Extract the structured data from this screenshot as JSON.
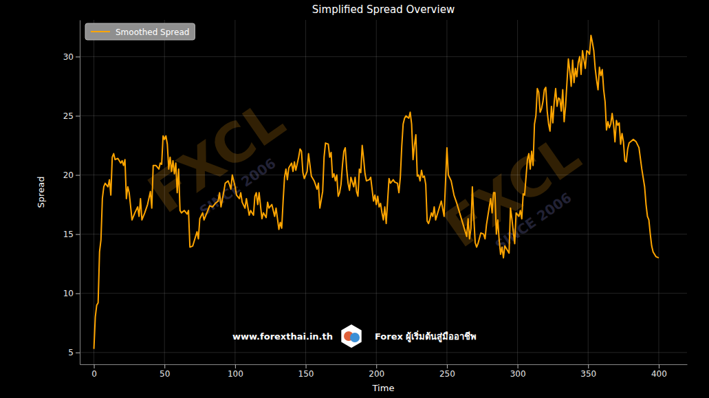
{
  "chart_data": {
    "type": "line",
    "title": "Simplified Spread Overview",
    "x_label": "Time",
    "y_label": "Spread",
    "x": [
      0,
      1,
      2,
      3,
      4,
      5,
      6,
      7,
      8,
      10,
      11,
      12,
      13,
      14,
      15,
      17,
      19,
      20,
      21,
      22,
      23,
      24,
      25,
      27,
      29,
      31,
      32,
      33,
      34,
      36,
      38,
      40,
      41,
      42,
      44,
      46,
      47,
      48,
      49,
      50,
      51,
      52,
      53,
      54,
      55,
      56,
      57,
      58,
      59,
      60,
      61,
      62,
      64,
      66,
      67,
      68,
      70,
      72,
      73,
      74,
      75,
      77,
      78,
      80,
      82,
      84,
      86,
      88,
      89,
      90,
      92,
      93,
      95,
      96,
      97,
      98,
      100,
      101,
      103,
      104,
      105,
      107,
      108,
      110,
      111,
      113,
      114,
      115,
      116,
      117,
      119,
      120,
      122,
      123,
      124,
      126,
      128,
      129,
      131,
      132,
      133,
      134,
      135,
      136,
      137,
      138,
      140,
      141,
      142,
      143,
      145,
      146,
      147,
      148,
      149,
      151,
      152,
      154,
      156,
      158,
      159,
      160,
      162,
      163,
      164,
      166,
      167,
      168,
      169,
      170,
      171,
      172,
      173,
      174,
      175,
      176,
      177,
      178,
      179,
      180,
      181,
      182,
      184,
      185,
      186,
      187,
      188,
      189,
      190,
      191,
      192,
      193,
      195,
      196,
      198,
      199,
      200,
      201,
      202,
      203,
      204,
      205,
      206,
      207,
      208,
      209,
      210,
      212,
      213,
      215,
      216,
      217,
      218,
      219,
      220,
      221,
      223,
      224,
      225,
      226,
      227,
      228,
      229,
      230,
      231,
      232,
      233,
      234,
      235,
      236,
      237,
      238,
      239,
      240,
      241,
      242,
      244,
      246,
      248,
      250,
      251,
      253,
      255,
      257,
      259,
      261,
      263,
      264,
      265,
      266,
      267,
      268,
      269,
      270,
      271,
      272,
      274,
      276,
      277,
      278,
      280,
      281,
      282,
      283,
      284,
      285,
      286,
      287,
      288,
      289,
      290,
      291,
      293,
      294,
      295,
      296,
      297,
      298,
      299,
      301,
      302,
      303,
      304,
      305,
      307,
      308,
      309,
      310,
      311,
      312,
      313,
      314,
      315,
      316,
      317,
      318,
      319,
      320,
      321,
      322,
      323,
      324,
      325,
      326,
      327,
      328,
      329,
      330,
      331,
      332,
      333,
      334,
      336,
      337,
      338,
      339,
      340,
      341,
      342,
      343,
      344,
      345,
      346,
      348,
      349,
      350,
      351,
      352,
      353,
      354,
      355,
      356,
      357,
      358,
      359,
      360,
      361,
      362,
      363,
      364,
      365,
      366,
      367,
      368,
      369,
      370,
      371,
      372,
      373,
      374,
      375,
      376,
      377,
      378,
      379,
      380,
      382,
      384,
      386,
      388,
      390,
      391,
      392,
      393,
      394,
      395,
      396,
      398,
      400
    ],
    "series": [
      {
        "name": "Smoothed Spread",
        "color": "#ffa500",
        "values": [
          5.3,
          8,
          9,
          9.2,
          13.5,
          14.5,
          18,
          19,
          19.3,
          19,
          19.6,
          18.3,
          21.5,
          21.8,
          21.3,
          21.4,
          21,
          21.2,
          20.8,
          21.3,
          18,
          19,
          18.5,
          16.2,
          16.8,
          17.3,
          16.5,
          18,
          16.2,
          16.8,
          17.5,
          18.6,
          17.2,
          20.8,
          20.8,
          20.5,
          21,
          20.9,
          23.3,
          23,
          23.3,
          22.6,
          20.5,
          21.5,
          20.3,
          21.2,
          20.1,
          21,
          18.5,
          20.5,
          17,
          16.8,
          17,
          16.7,
          17,
          13.9,
          14,
          14.8,
          15.2,
          14.6,
          16.3,
          16.8,
          16.2,
          16.8,
          17.4,
          17.3,
          17.6,
          17.8,
          18.5,
          17.3,
          18.6,
          19.3,
          19.5,
          19.2,
          18.8,
          20,
          19,
          18.3,
          18,
          18.5,
          17.7,
          17.2,
          18,
          16.6,
          17,
          16.6,
          18.2,
          18.5,
          17.5,
          18.5,
          16.3,
          16.8,
          16.4,
          17.7,
          17.2,
          17.5,
          16.5,
          17.2,
          15.4,
          16,
          15.5,
          17.8,
          19.8,
          20.5,
          19.6,
          20.6,
          21,
          20.3,
          21.1,
          20.4,
          21.5,
          22.2,
          22,
          20.2,
          19.7,
          20.3,
          21.8,
          19.9,
          19.5,
          18.8,
          19.3,
          17.2,
          18.6,
          21.5,
          22.7,
          22.6,
          21.5,
          21.9,
          19.8,
          20.1,
          19.5,
          20,
          18.2,
          18.5,
          19.2,
          20.8,
          22,
          22.3,
          20.5,
          19.3,
          18.7,
          19.8,
          19,
          19.8,
          18.6,
          18.2,
          20.5,
          20.2,
          22.5,
          21.4,
          20.1,
          19.5,
          19.6,
          19.8,
          17.8,
          18.3,
          17.5,
          18.2,
          17.3,
          17.6,
          16.8,
          16.2,
          17.3,
          15.9,
          17.8,
          19.7,
          19.3,
          19.6,
          19.4,
          19.3,
          18.5,
          19.8,
          22.4,
          24.3,
          24.8,
          25,
          24.8,
          25.3,
          24.3,
          21.3,
          22.5,
          23.4,
          19.9,
          20,
          19.5,
          20.4,
          19.8,
          19.9,
          19.2,
          16.1,
          15.9,
          16.3,
          16.8,
          16.5,
          17.3,
          16.2,
          17,
          17.8,
          16.5,
          22.3,
          20,
          19.5,
          18.3,
          17.6,
          16.8,
          16,
          15.2,
          14.8,
          16.3,
          14.6,
          15.5,
          19,
          16.5,
          14.3,
          13.9,
          14.2,
          15.1,
          15,
          14.6,
          15.8,
          17.3,
          18,
          16.8,
          18.5,
          18.5,
          15,
          16.2,
          14.5,
          13.3,
          13.9,
          13,
          14,
          13.6,
          13.4,
          17.2,
          16.3,
          15.2,
          14.2,
          16.8,
          16.5,
          17,
          16.3,
          18.4,
          18.3,
          21.3,
          21.8,
          20.5,
          22,
          20.8,
          24.3,
          25,
          27.3,
          27,
          25.3,
          25.6,
          26.2,
          27.2,
          27.4,
          25.4,
          24.3,
          23.7,
          25.8,
          24.4,
          26.2,
          27.3,
          25.8,
          26.5,
          26.4,
          25.4,
          27.2,
          24.5,
          25.8,
          29.8,
          28.8,
          27.5,
          29.7,
          27.8,
          29,
          28.3,
          29.5,
          30,
          28.5,
          30.5,
          29,
          30.5,
          30.4,
          30.2,
          31.8,
          31.2,
          30.5,
          29,
          28,
          27.2,
          29.1,
          28.4,
          28.9,
          27.2,
          26.2,
          23.8,
          24.5,
          24,
          24.3,
          25.2,
          24.3,
          22.8,
          24.6,
          24.2,
          24.4,
          22.6,
          23.5,
          22.8,
          21.2,
          21.1,
          22.2,
          22.7,
          22.8,
          23,
          22.8,
          22.3,
          20.5,
          19,
          17.5,
          16.5,
          16.2,
          15,
          14,
          13.5,
          13.1,
          13
        ]
      }
    ],
    "xlim": [
      -10,
      420
    ],
    "ylim": [
      4,
      33.1
    ],
    "xticks": [
      0,
      50,
      100,
      150,
      200,
      250,
      300,
      350,
      400
    ],
    "yticks": [
      5,
      10,
      15,
      20,
      25,
      30
    ],
    "grid": true,
    "legend": "upper left",
    "annotations": [
      "www.forexthai.in.th",
      "Forex ผู้เริ่มต้นสู่มืออาชีพ",
      "FXCL",
      "SINCE 2006"
    ]
  }
}
